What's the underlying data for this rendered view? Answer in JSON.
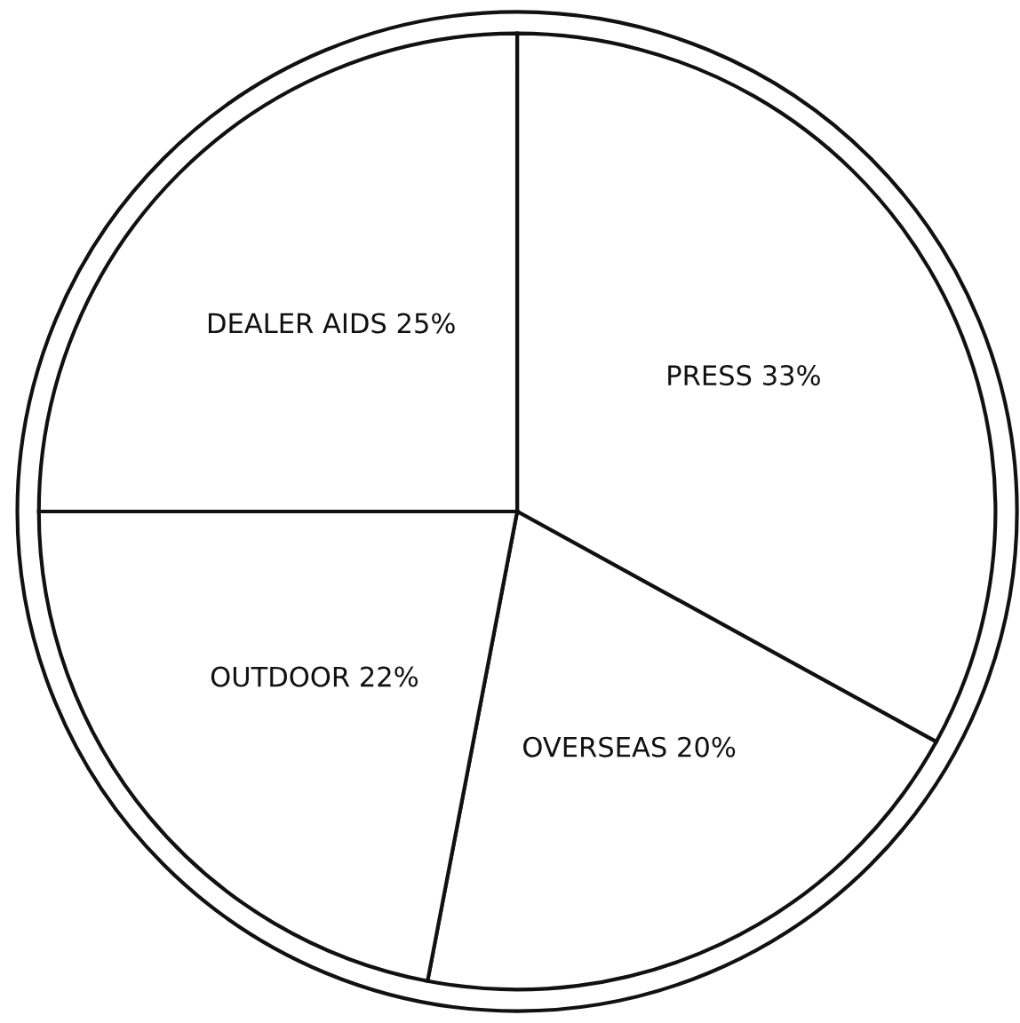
{
  "chart_data": {
    "type": "pie",
    "categories": [
      "PRESS",
      "OVERSEAS",
      "OUTDOOR",
      "DEALER AIDS"
    ],
    "values": [
      33,
      20,
      22,
      25
    ],
    "value_labels": [
      "33%",
      "20%",
      "22%",
      "25%"
    ],
    "colors": [
      "#ffffff",
      "#ffffff",
      "#ffffff",
      "#ffffff"
    ]
  }
}
